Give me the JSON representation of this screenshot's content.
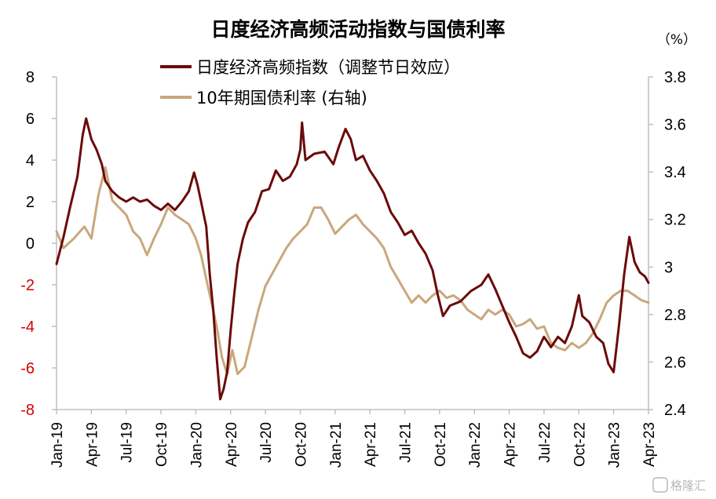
{
  "chart_data": {
    "type": "line",
    "title": "日度经济高频活动指数与国债利率",
    "right_unit": "（%）",
    "x_categories": [
      "Jan-19",
      "Apr-19",
      "Jul-19",
      "Oct-19",
      "Jan-20",
      "Apr-20",
      "Jul-20",
      "Oct-20",
      "Jan-21",
      "Apr-21",
      "Jul-21",
      "Oct-21",
      "Jan-22",
      "Apr-22",
      "Jul-22",
      "Oct-22",
      "Jan-23",
      "Apr-23"
    ],
    "y_left": {
      "ticks": [
        "8",
        "6",
        "4",
        "2",
        "0",
        "-2",
        "-4",
        "-6",
        "-8"
      ],
      "range": [
        -8,
        8
      ]
    },
    "y_right": {
      "ticks": [
        "3.8",
        "3.6",
        "3.4",
        "3.2",
        "3",
        "2.8",
        "2.6",
        "2.4"
      ],
      "range": [
        2.4,
        3.8
      ]
    },
    "legend_position": "top",
    "series": [
      {
        "name": "日度经济高频指数（调整节日效应）",
        "axis": "left",
        "color": "#6b0a0a",
        "points": [
          [
            0,
            -1
          ],
          [
            0.2,
            0.3
          ],
          [
            0.4,
            1.8
          ],
          [
            0.6,
            3.2
          ],
          [
            0.75,
            5.2
          ],
          [
            0.85,
            6.0
          ],
          [
            1.0,
            5.0
          ],
          [
            1.15,
            4.5
          ],
          [
            1.3,
            3.8
          ],
          [
            1.4,
            3.0
          ],
          [
            1.6,
            2.5
          ],
          [
            1.8,
            2.2
          ],
          [
            2.0,
            2.0
          ],
          [
            2.2,
            2.2
          ],
          [
            2.4,
            2.0
          ],
          [
            2.6,
            2.1
          ],
          [
            2.8,
            1.8
          ],
          [
            3.0,
            1.6
          ],
          [
            3.2,
            1.9
          ],
          [
            3.4,
            1.6
          ],
          [
            3.6,
            2.0
          ],
          [
            3.8,
            2.5
          ],
          [
            3.95,
            3.4
          ],
          [
            4.05,
            2.8
          ],
          [
            4.15,
            2.0
          ],
          [
            4.3,
            0.8
          ],
          [
            4.4,
            -1.5
          ],
          [
            4.5,
            -3.2
          ],
          [
            4.6,
            -5.5
          ],
          [
            4.7,
            -7.5
          ],
          [
            4.8,
            -7.0
          ],
          [
            4.9,
            -6.2
          ],
          [
            5.0,
            -4.2
          ],
          [
            5.1,
            -2.5
          ],
          [
            5.2,
            -1.0
          ],
          [
            5.35,
            0.2
          ],
          [
            5.5,
            1.0
          ],
          [
            5.7,
            1.5
          ],
          [
            5.9,
            2.5
          ],
          [
            6.1,
            2.6
          ],
          [
            6.3,
            3.5
          ],
          [
            6.5,
            3.0
          ],
          [
            6.7,
            3.2
          ],
          [
            6.9,
            3.8
          ],
          [
            7.0,
            4.5
          ],
          [
            7.05,
            5.8
          ],
          [
            7.15,
            4.0
          ],
          [
            7.4,
            4.3
          ],
          [
            7.7,
            4.4
          ],
          [
            7.95,
            3.8
          ],
          [
            8.1,
            4.6
          ],
          [
            8.3,
            5.5
          ],
          [
            8.45,
            5.0
          ],
          [
            8.6,
            4.0
          ],
          [
            8.8,
            4.2
          ],
          [
            9.0,
            3.5
          ],
          [
            9.2,
            3.0
          ],
          [
            9.4,
            2.4
          ],
          [
            9.6,
            1.5
          ],
          [
            9.8,
            1.0
          ],
          [
            10.0,
            0.4
          ],
          [
            10.2,
            0.6
          ],
          [
            10.4,
            0.0
          ],
          [
            10.6,
            -0.5
          ],
          [
            10.8,
            -1.3
          ],
          [
            10.95,
            -2.5
          ],
          [
            11.1,
            -3.5
          ],
          [
            11.3,
            -3.0
          ],
          [
            11.6,
            -2.8
          ],
          [
            11.9,
            -2.3
          ],
          [
            12.2,
            -2.0
          ],
          [
            12.4,
            -1.5
          ],
          [
            12.6,
            -2.2
          ],
          [
            12.8,
            -3.0
          ],
          [
            13.0,
            -3.8
          ],
          [
            13.2,
            -4.5
          ],
          [
            13.4,
            -5.3
          ],
          [
            13.6,
            -5.5
          ],
          [
            13.8,
            -5.2
          ],
          [
            14.0,
            -4.5
          ],
          [
            14.2,
            -5.0
          ],
          [
            14.4,
            -4.5
          ],
          [
            14.6,
            -4.8
          ],
          [
            14.8,
            -4.0
          ],
          [
            15.0,
            -2.5
          ],
          [
            15.1,
            -3.5
          ],
          [
            15.3,
            -3.8
          ],
          [
            15.5,
            -4.5
          ],
          [
            15.7,
            -4.8
          ],
          [
            15.85,
            -5.8
          ],
          [
            16.0,
            -6.2
          ],
          [
            16.15,
            -4.0
          ],
          [
            16.3,
            -1.5
          ],
          [
            16.45,
            0.3
          ],
          [
            16.6,
            -0.9
          ],
          [
            16.75,
            -1.4
          ],
          [
            16.9,
            -1.6
          ],
          [
            17.0,
            -1.9
          ]
        ]
      },
      {
        "name": "10年期国债利率 (右轴)",
        "axis": "right",
        "color": "#c9a77c",
        "points": [
          [
            0,
            3.15
          ],
          [
            0.2,
            3.08
          ],
          [
            0.5,
            3.12
          ],
          [
            0.8,
            3.17
          ],
          [
            1.0,
            3.12
          ],
          [
            1.2,
            3.3
          ],
          [
            1.4,
            3.42
          ],
          [
            1.6,
            3.28
          ],
          [
            1.8,
            3.25
          ],
          [
            2.0,
            3.22
          ],
          [
            2.2,
            3.15
          ],
          [
            2.4,
            3.12
          ],
          [
            2.6,
            3.05
          ],
          [
            2.8,
            3.12
          ],
          [
            3.0,
            3.18
          ],
          [
            3.2,
            3.25
          ],
          [
            3.4,
            3.22
          ],
          [
            3.6,
            3.2
          ],
          [
            3.8,
            3.18
          ],
          [
            4.0,
            3.12
          ],
          [
            4.15,
            3.05
          ],
          [
            4.3,
            2.95
          ],
          [
            4.45,
            2.85
          ],
          [
            4.6,
            2.75
          ],
          [
            4.75,
            2.62
          ],
          [
            4.9,
            2.55
          ],
          [
            5.05,
            2.65
          ],
          [
            5.2,
            2.55
          ],
          [
            5.4,
            2.58
          ],
          [
            5.6,
            2.7
          ],
          [
            5.8,
            2.82
          ],
          [
            6.0,
            2.92
          ],
          [
            6.3,
            3.0
          ],
          [
            6.6,
            3.08
          ],
          [
            6.8,
            3.12
          ],
          [
            7.0,
            3.15
          ],
          [
            7.2,
            3.18
          ],
          [
            7.4,
            3.25
          ],
          [
            7.6,
            3.25
          ],
          [
            7.8,
            3.2
          ],
          [
            8.0,
            3.14
          ],
          [
            8.2,
            3.17
          ],
          [
            8.4,
            3.2
          ],
          [
            8.6,
            3.22
          ],
          [
            8.8,
            3.18
          ],
          [
            9.0,
            3.15
          ],
          [
            9.2,
            3.12
          ],
          [
            9.4,
            3.08
          ],
          [
            9.6,
            3.0
          ],
          [
            9.8,
            2.95
          ],
          [
            10.0,
            2.9
          ],
          [
            10.2,
            2.85
          ],
          [
            10.4,
            2.88
          ],
          [
            10.6,
            2.85
          ],
          [
            10.8,
            2.88
          ],
          [
            11.0,
            2.9
          ],
          [
            11.2,
            2.87
          ],
          [
            11.4,
            2.88
          ],
          [
            11.6,
            2.86
          ],
          [
            11.8,
            2.82
          ],
          [
            12.0,
            2.8
          ],
          [
            12.2,
            2.78
          ],
          [
            12.4,
            2.82
          ],
          [
            12.6,
            2.8
          ],
          [
            12.8,
            2.82
          ],
          [
            13.0,
            2.8
          ],
          [
            13.2,
            2.75
          ],
          [
            13.4,
            2.76
          ],
          [
            13.6,
            2.78
          ],
          [
            13.8,
            2.74
          ],
          [
            14.0,
            2.75
          ],
          [
            14.2,
            2.68
          ],
          [
            14.4,
            2.66
          ],
          [
            14.6,
            2.65
          ],
          [
            14.8,
            2.68
          ],
          [
            15.0,
            2.66
          ],
          [
            15.2,
            2.68
          ],
          [
            15.4,
            2.72
          ],
          [
            15.6,
            2.78
          ],
          [
            15.8,
            2.85
          ],
          [
            16.0,
            2.88
          ],
          [
            16.2,
            2.9
          ],
          [
            16.4,
            2.9
          ],
          [
            16.6,
            2.88
          ],
          [
            16.8,
            2.86
          ],
          [
            17.0,
            2.85
          ]
        ]
      }
    ]
  },
  "watermark": "格隆汇"
}
